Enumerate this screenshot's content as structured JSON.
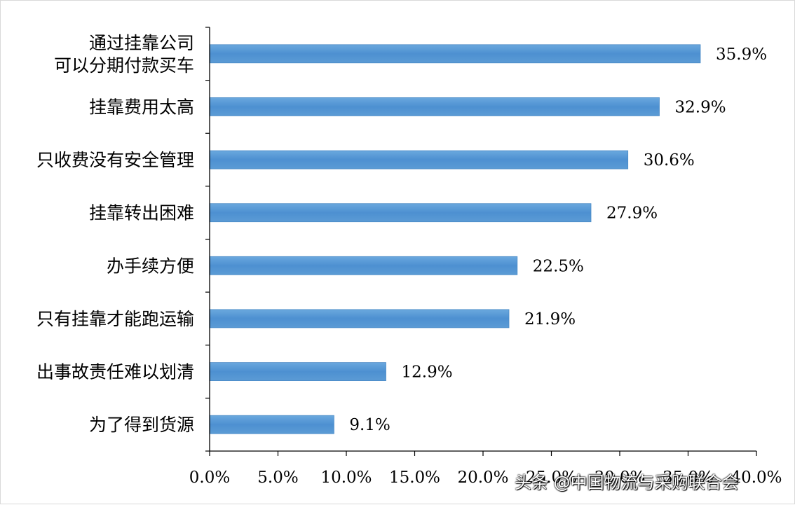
{
  "chart_data": {
    "type": "bar",
    "orientation": "horizontal",
    "categories": [
      "通过挂靠公司\n可以分期付款买车",
      "挂靠费用太高",
      "只收费没有安全管理",
      "挂靠转出困难",
      "办手续方便",
      "只有挂靠才能跑运输",
      "出事故责任难以划清",
      "为了得到货源"
    ],
    "values": [
      35.9,
      32.9,
      30.6,
      27.9,
      22.5,
      21.9,
      12.9,
      9.1
    ],
    "value_labels": [
      "35.9%",
      "32.9%",
      "30.6%",
      "27.9%",
      "22.5%",
      "21.9%",
      "12.9%",
      "9.1%"
    ],
    "xlim": [
      0,
      40
    ],
    "x_ticks": [
      0,
      5,
      10,
      15,
      20,
      25,
      30,
      35,
      40
    ],
    "x_tick_labels": [
      "0.0%",
      "5.0%",
      "10.0%",
      "15.0%",
      "20.0%",
      "25.0%",
      "30.0%",
      "35.0%",
      "40.0%"
    ],
    "bar_color": "#5b9bd5",
    "grid": false,
    "legend": "none"
  },
  "watermark": {
    "text": "头条 @中国物流与采购联合会"
  }
}
